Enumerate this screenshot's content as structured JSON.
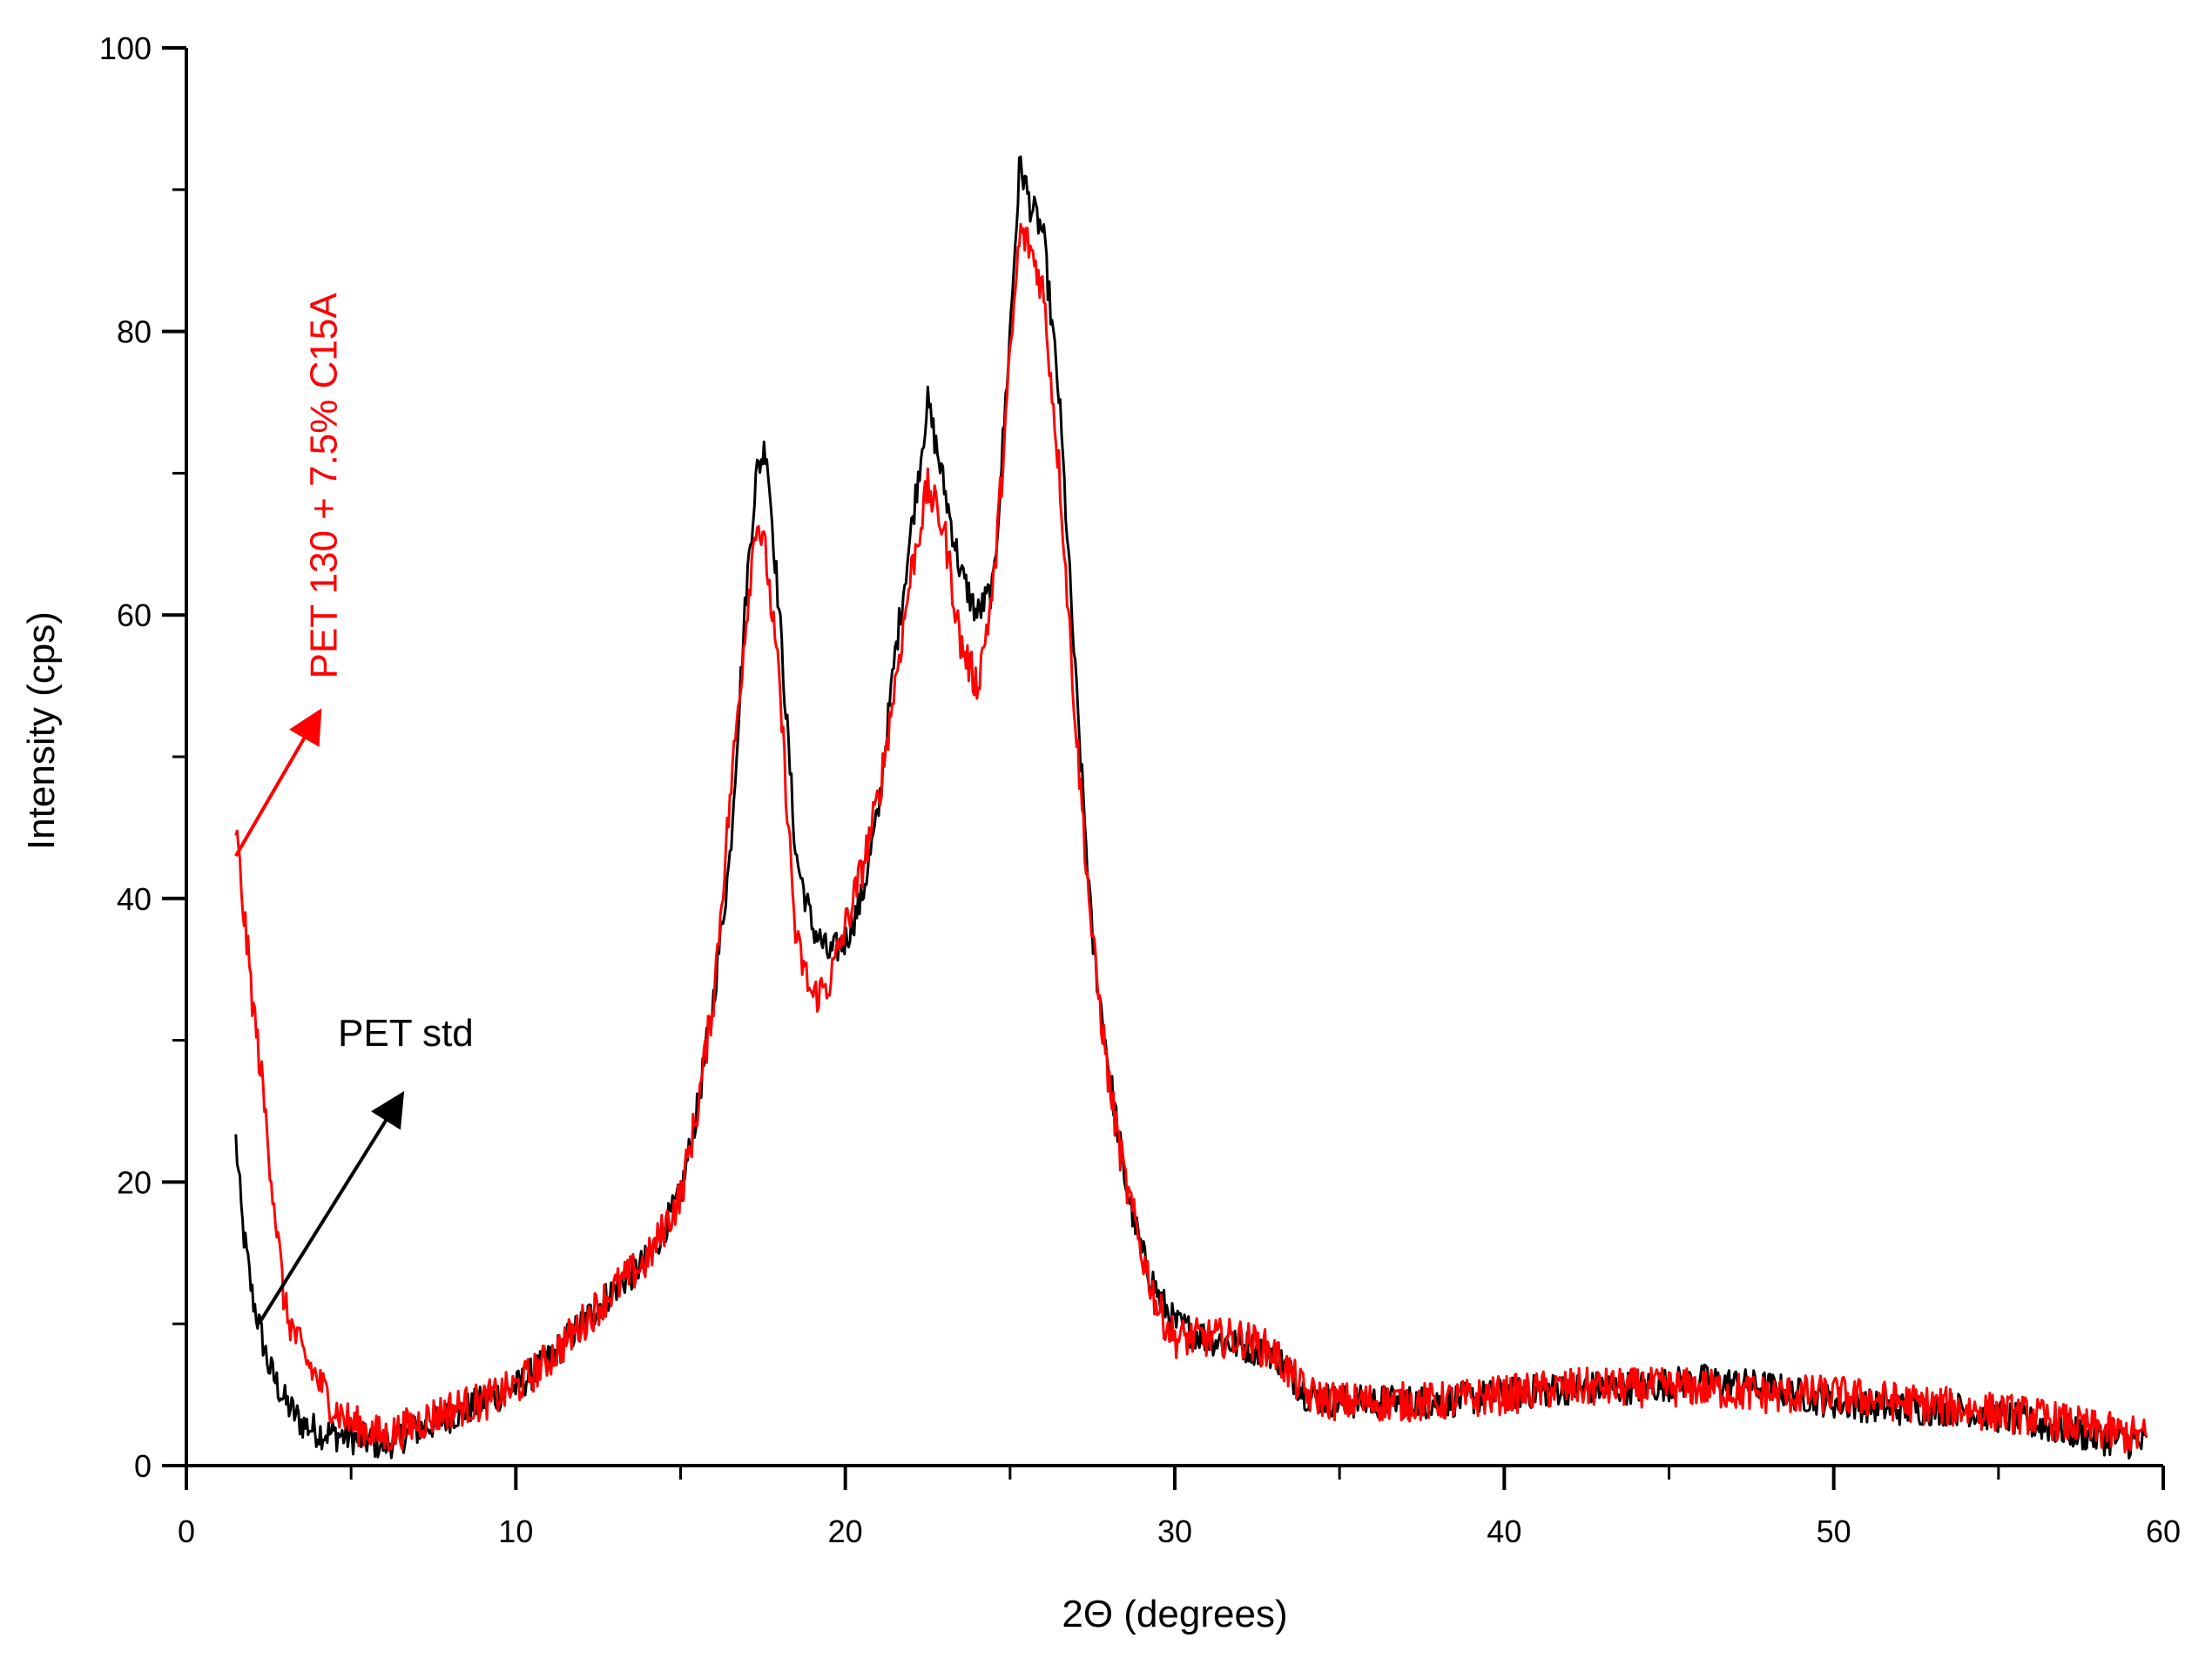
{
  "chart_data": {
    "type": "line",
    "title": "",
    "xlabel": "2Θ (degrees)",
    "ylabel": "Intensity (cps)",
    "xlim": [
      0,
      60
    ],
    "ylim": [
      0,
      100
    ],
    "grid": false,
    "x_major_ticks": [
      0,
      10,
      20,
      30,
      40,
      50,
      60
    ],
    "x_minor_ticks": [
      5,
      15,
      25,
      35,
      45,
      55
    ],
    "y_major_ticks": [
      0,
      20,
      40,
      60,
      80,
      100
    ],
    "y_minor_ticks": [
      10,
      30,
      50,
      70,
      90
    ],
    "x_tick_labels": [
      "0",
      "10",
      "20",
      "30",
      "40",
      "50",
      "60"
    ],
    "y_tick_labels": [
      "0",
      "20",
      "40",
      "60",
      "80",
      "100"
    ],
    "series": [
      {
        "name": "PET std",
        "color": "#000000",
        "noise": 1.2,
        "points": [
          [
            1.5,
            23
          ],
          [
            1.7,
            17
          ],
          [
            2,
            12
          ],
          [
            2.5,
            7
          ],
          [
            3,
            4.5
          ],
          [
            3.5,
            3
          ],
          [
            4,
            2.4
          ],
          [
            5,
            2
          ],
          [
            6,
            1.5
          ],
          [
            7,
            2.5
          ],
          [
            8,
            3.5
          ],
          [
            9,
            4.5
          ],
          [
            10,
            5.5
          ],
          [
            11,
            7.5
          ],
          [
            12,
            10
          ],
          [
            13,
            12.5
          ],
          [
            14,
            14.5
          ],
          [
            15,
            19
          ],
          [
            15.5,
            25
          ],
          [
            16,
            33
          ],
          [
            16.5,
            43
          ],
          [
            17,
            62
          ],
          [
            17.3,
            70
          ],
          [
            17.6,
            72
          ],
          [
            18,
            60
          ],
          [
            18.5,
            43
          ],
          [
            19,
            38
          ],
          [
            19.5,
            36
          ],
          [
            20,
            37
          ],
          [
            20.5,
            40
          ],
          [
            21,
            46
          ],
          [
            21.5,
            57
          ],
          [
            22,
            66
          ],
          [
            22.5,
            75
          ],
          [
            23,
            69
          ],
          [
            23.5,
            63
          ],
          [
            24,
            60
          ],
          [
            24.5,
            62
          ],
          [
            25,
            80
          ],
          [
            25.3,
            92
          ],
          [
            25.6,
            89
          ],
          [
            26,
            87
          ],
          [
            26.5,
            75
          ],
          [
            27,
            55
          ],
          [
            27.5,
            37
          ],
          [
            28,
            28
          ],
          [
            28.5,
            20
          ],
          [
            29,
            15
          ],
          [
            29.5,
            12
          ],
          [
            30,
            10
          ],
          [
            31,
            9
          ],
          [
            32,
            8.5
          ],
          [
            33,
            8
          ],
          [
            34,
            5
          ],
          [
            35,
            4.5
          ],
          [
            36,
            4.5
          ],
          [
            38,
            4.5
          ],
          [
            40,
            5
          ],
          [
            42,
            5.5
          ],
          [
            44,
            5.5
          ],
          [
            46,
            6
          ],
          [
            48,
            5.5
          ],
          [
            50,
            4.5
          ],
          [
            52,
            4
          ],
          [
            54,
            4
          ],
          [
            56,
            3
          ],
          [
            58,
            2
          ],
          [
            59.5,
            1.5
          ]
        ]
      },
      {
        "name": "PET 130 + 7.5% C15A",
        "color": "#ff0000",
        "noise": 1.4,
        "points": [
          [
            1.5,
            45
          ],
          [
            1.7,
            40
          ],
          [
            2,
            33
          ],
          [
            2.3,
            27
          ],
          [
            2.6,
            20
          ],
          [
            3,
            11
          ],
          [
            3.5,
            8
          ],
          [
            4,
            6
          ],
          [
            4.5,
            4
          ],
          [
            5,
            3
          ],
          [
            6,
            2
          ],
          [
            7,
            3
          ],
          [
            8,
            4
          ],
          [
            9,
            4.5
          ],
          [
            10,
            5.5
          ],
          [
            11,
            7.5
          ],
          [
            12,
            10
          ],
          [
            13,
            12.5
          ],
          [
            14,
            14.5
          ],
          [
            15,
            19
          ],
          [
            15.5,
            25
          ],
          [
            16,
            33
          ],
          [
            16.5,
            47
          ],
          [
            17,
            60
          ],
          [
            17.3,
            67
          ],
          [
            17.6,
            64
          ],
          [
            18,
            55
          ],
          [
            18.5,
            37
          ],
          [
            19,
            33
          ],
          [
            19.5,
            34
          ],
          [
            20,
            38
          ],
          [
            20.5,
            42
          ],
          [
            21,
            47
          ],
          [
            21.5,
            55
          ],
          [
            22,
            63
          ],
          [
            22.5,
            69
          ],
          [
            23,
            66
          ],
          [
            23.5,
            58
          ],
          [
            24,
            55
          ],
          [
            24.5,
            62
          ],
          [
            25,
            78
          ],
          [
            25.3,
            87
          ],
          [
            25.6,
            86
          ],
          [
            26,
            83
          ],
          [
            26.5,
            70
          ],
          [
            27,
            52
          ],
          [
            27.5,
            37
          ],
          [
            28,
            27
          ],
          [
            28.5,
            20
          ],
          [
            29,
            15
          ],
          [
            29.5,
            11
          ],
          [
            30,
            9
          ],
          [
            31,
            9
          ],
          [
            32,
            9
          ],
          [
            33,
            8
          ],
          [
            34,
            5
          ],
          [
            35,
            4.5
          ],
          [
            36,
            4.5
          ],
          [
            38,
            4.5
          ],
          [
            40,
            5
          ],
          [
            42,
            5.5
          ],
          [
            44,
            5.5
          ],
          [
            46,
            5.5
          ],
          [
            48,
            5
          ],
          [
            50,
            5
          ],
          [
            52,
            4.5
          ],
          [
            54,
            4
          ],
          [
            56,
            3.5
          ],
          [
            58,
            2.5
          ],
          [
            59.5,
            2
          ]
        ]
      }
    ],
    "annotations": [
      {
        "text": "PET std",
        "color": "#000000",
        "rotated": false,
        "arrow_from": [
          2.2,
          10
        ],
        "arrow_to": [
          6.5,
          26
        ]
      },
      {
        "text": "PET 130 + 7.5% C15A",
        "color": "#ff0000",
        "rotated": true,
        "arrow_from": [
          1.5,
          43
        ],
        "arrow_to": [
          4,
          53
        ]
      }
    ]
  }
}
